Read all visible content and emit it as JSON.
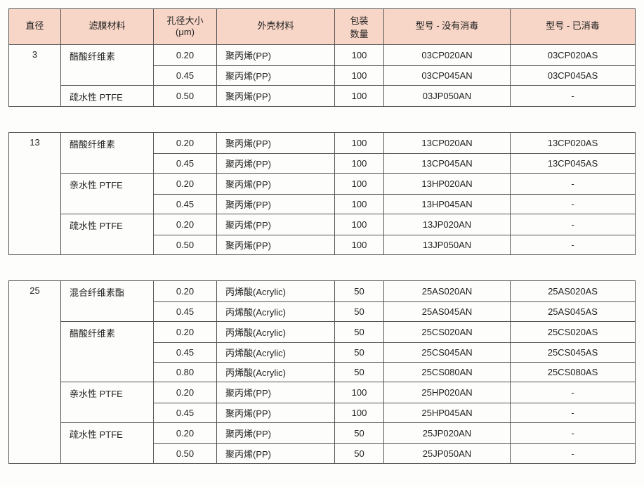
{
  "headers": {
    "diameter": "直径",
    "membrane": "滤膜材料",
    "pore": "孔径大小\n(μm)",
    "housing": "外壳材料",
    "qty": "包装\n数量",
    "model_ns": "型号 - 没有消毒",
    "model_s": "型号 - 已消毒"
  },
  "groups": [
    {
      "diameter": "3",
      "blocks": [
        {
          "material": "醋酸纤维素",
          "rows": [
            {
              "pore": "0.20",
              "housing": "聚丙烯(PP)",
              "qty": "100",
              "ns": "03CP020AN",
              "s": "03CP020AS"
            },
            {
              "pore": "0.45",
              "housing": "聚丙烯(PP)",
              "qty": "100",
              "ns": "03CP045AN",
              "s": "03CP045AS"
            }
          ]
        },
        {
          "material": "疏水性 PTFE",
          "rows": [
            {
              "pore": "0.50",
              "housing": "聚丙烯(PP)",
              "qty": "100",
              "ns": "03JP050AN",
              "s": "-"
            }
          ]
        }
      ]
    },
    {
      "diameter": "13",
      "blocks": [
        {
          "material": "醋酸纤维素",
          "rows": [
            {
              "pore": "0.20",
              "housing": "聚丙烯(PP)",
              "qty": "100",
              "ns": "13CP020AN",
              "s": "13CP020AS"
            },
            {
              "pore": "0.45",
              "housing": "聚丙烯(PP)",
              "qty": "100",
              "ns": "13CP045AN",
              "s": "13CP045AS"
            }
          ]
        },
        {
          "material": "亲水性 PTFE",
          "rows": [
            {
              "pore": "0.20",
              "housing": "聚丙烯(PP)",
              "qty": "100",
              "ns": "13HP020AN",
              "s": "-"
            },
            {
              "pore": "0.45",
              "housing": "聚丙烯(PP)",
              "qty": "100",
              "ns": "13HP045AN",
              "s": "-"
            }
          ]
        },
        {
          "material": "疏水性 PTFE",
          "rows": [
            {
              "pore": "0.20",
              "housing": "聚丙烯(PP)",
              "qty": "100",
              "ns": "13JP020AN",
              "s": "-"
            },
            {
              "pore": "0.50",
              "housing": "聚丙烯(PP)",
              "qty": "100",
              "ns": "13JP050AN",
              "s": "-"
            }
          ]
        }
      ]
    },
    {
      "diameter": "25",
      "blocks": [
        {
          "material": "混合纤维素酯",
          "rows": [
            {
              "pore": "0.20",
              "housing": "丙烯酸(Acrylic)",
              "qty": "50",
              "ns": "25AS020AN",
              "s": "25AS020AS"
            },
            {
              "pore": "0.45",
              "housing": "丙烯酸(Acrylic)",
              "qty": "50",
              "ns": "25AS045AN",
              "s": "25AS045AS"
            }
          ]
        },
        {
          "material": "醋酸纤维素",
          "rows": [
            {
              "pore": "0.20",
              "housing": "丙烯酸(Acrylic)",
              "qty": "50",
              "ns": "25CS020AN",
              "s": "25CS020AS"
            },
            {
              "pore": "0.45",
              "housing": "丙烯酸(Acrylic)",
              "qty": "50",
              "ns": "25CS045AN",
              "s": "25CS045AS"
            },
            {
              "pore": "0.80",
              "housing": "丙烯酸(Acrylic)",
              "qty": "50",
              "ns": "25CS080AN",
              "s": "25CS080AS"
            }
          ]
        },
        {
          "material": "亲水性 PTFE",
          "rows": [
            {
              "pore": "0.20",
              "housing": "聚丙烯(PP)",
              "qty": "100",
              "ns": "25HP020AN",
              "s": "-"
            },
            {
              "pore": "0.45",
              "housing": "聚丙烯(PP)",
              "qty": "100",
              "ns": "25HP045AN",
              "s": "-"
            }
          ]
        },
        {
          "material": "疏水性 PTFE",
          "rows": [
            {
              "pore": "0.20",
              "housing": "聚丙烯(PP)",
              "qty": "50",
              "ns": "25JP020AN",
              "s": "-"
            },
            {
              "pore": "0.50",
              "housing": "聚丙烯(PP)",
              "qty": "50",
              "ns": "25JP050AN",
              "s": "-"
            }
          ]
        }
      ]
    }
  ]
}
